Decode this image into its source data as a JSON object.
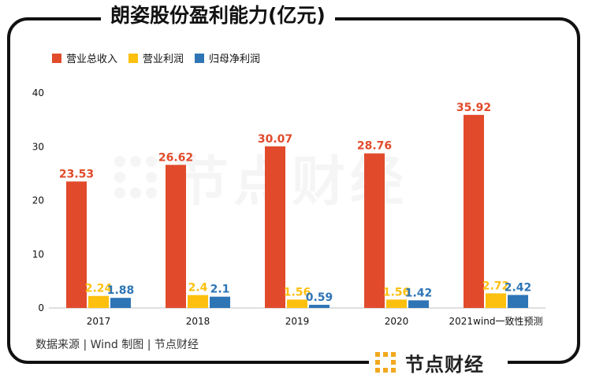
{
  "chart_data": {
    "type": "bar",
    "title": "朗姿股份盈利能力(亿元)",
    "categories": [
      "2017",
      "2018",
      "2019",
      "2020",
      "2021wind一致性预测"
    ],
    "series": [
      {
        "name": "营业总收入",
        "color": "#E14B2B",
        "values": [
          23.53,
          26.62,
          30.07,
          28.76,
          35.92
        ],
        "labels": [
          "23.53",
          "26.62",
          "30.07",
          "28.76",
          "35.92"
        ]
      },
      {
        "name": "营业利润",
        "color": "#FDC00F",
        "values": [
          2.24,
          2.4,
          1.56,
          1.56,
          2.72
        ],
        "labels": [
          "2.24",
          "2.4",
          "1.56",
          "1.56",
          "2.72"
        ]
      },
      {
        "name": "归母净利润",
        "color": "#2E75B6",
        "values": [
          1.88,
          2.1,
          0.59,
          1.42,
          2.42
        ],
        "labels": [
          "1.88",
          "2.1",
          "0.59",
          "1.42",
          "2.42"
        ]
      }
    ],
    "yticks": [
      "0",
      "10",
      "20",
      "30",
      "40"
    ],
    "ylim": [
      0,
      40
    ],
    "legend": "top-left",
    "grid": false
  },
  "source_text": "数据来源 | Wind    制图 | 节点财经",
  "logo_text": "节点财经",
  "watermark_text": "节点财经"
}
